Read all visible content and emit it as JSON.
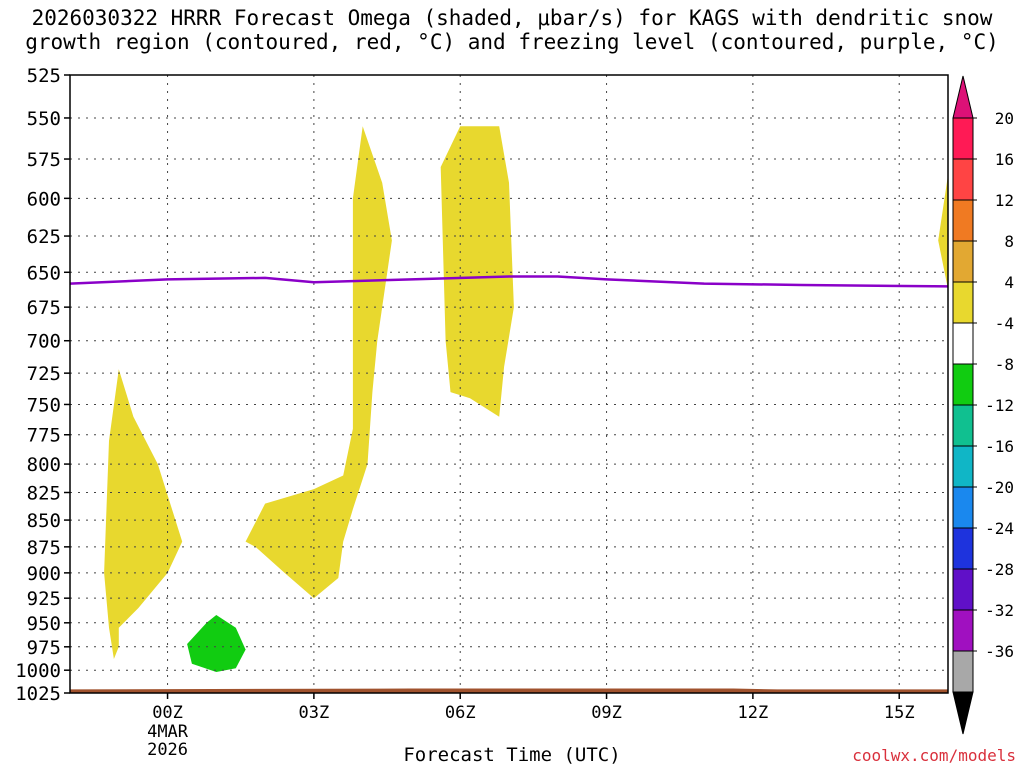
{
  "title_line1": "2026030322 HRRR Forecast Omega (shaded, μbar/s) for KAGS with dendritic snow",
  "title_line2": "growth region (contoured, red, °C) and freezing level (contoured, purple, °C)",
  "footer": {
    "xlabel": "Forecast Time (UTC)",
    "credit": "coolwx.com/models"
  },
  "chart_data": {
    "type": "contour",
    "title": "2026030322 HRRR Forecast Omega (shaded, μbar/s) for KAGS with dendritic snow growth region (contoured, red, °C) and freezing level (contoured, purple, °C)",
    "xlabel": "Forecast Time (UTC)",
    "ylabel": "",
    "x_unit": "hours since 2026-03-03 22Z",
    "xlim": [
      0,
      18
    ],
    "y_scale": "log-pressure",
    "ylim": [
      1025,
      525
    ],
    "x_ticks": [
      {
        "x": 2,
        "label": "00Z",
        "sub": [
          "4MAR",
          "2026"
        ]
      },
      {
        "x": 5,
        "label": "03Z"
      },
      {
        "x": 8,
        "label": "06Z"
      },
      {
        "x": 11,
        "label": "09Z"
      },
      {
        "x": 14,
        "label": "12Z"
      },
      {
        "x": 17,
        "label": "15Z"
      }
    ],
    "y_ticks": [
      525,
      550,
      575,
      600,
      625,
      650,
      675,
      700,
      725,
      750,
      775,
      800,
      825,
      850,
      875,
      900,
      925,
      950,
      975,
      1000,
      1025
    ],
    "grid": true,
    "colorbar": {
      "levels": [
        20,
        16,
        12,
        8,
        4,
        -4,
        -8,
        -12,
        -16,
        -20,
        -24,
        -28,
        -32,
        -36
      ],
      "colors": [
        "#ff1a55",
        "#ff4444",
        "#f07a22",
        "#e2a832",
        "#e8d82e",
        "#ffffff",
        "#11cc11",
        "#10c090",
        "#10b6c6",
        "#1a88ee",
        "#1e33dd",
        "#6010c8",
        "#a010c0",
        "#a8a8a8"
      ],
      "top_color": "#dd1177",
      "bottom_color": "#000000"
    },
    "freezing_level": {
      "color": "#8a00c8",
      "points": [
        [
          0.0,
          658
        ],
        [
          2.0,
          655
        ],
        [
          4.0,
          654
        ],
        [
          5.0,
          657
        ],
        [
          7.0,
          655
        ],
        [
          9.0,
          653
        ],
        [
          10.0,
          653
        ],
        [
          11.0,
          655
        ],
        [
          13.0,
          658
        ],
        [
          15.0,
          659
        ],
        [
          18.0,
          660
        ]
      ]
    },
    "omega_regions": [
      {
        "value_range": [
          4,
          8
        ],
        "color": "#e8d82e",
        "points": [
          [
            0.8,
            780
          ],
          [
            1.0,
            722
          ],
          [
            1.3,
            760
          ],
          [
            1.8,
            800
          ],
          [
            2.3,
            870
          ],
          [
            2.0,
            900
          ],
          [
            1.4,
            935
          ],
          [
            1.0,
            955
          ],
          [
            1.0,
            975
          ],
          [
            0.9,
            988
          ],
          [
            0.8,
            955
          ],
          [
            0.7,
            900
          ]
        ]
      },
      {
        "value_range": [
          4,
          8
        ],
        "color": "#e8d82e",
        "points": [
          [
            3.6,
            870
          ],
          [
            4.0,
            835
          ],
          [
            5.0,
            822
          ],
          [
            5.6,
            810
          ],
          [
            5.8,
            770
          ],
          [
            5.8,
            600
          ],
          [
            6.0,
            555
          ],
          [
            6.4,
            590
          ],
          [
            6.6,
            628
          ],
          [
            6.3,
            700
          ],
          [
            6.2,
            740
          ],
          [
            6.1,
            800
          ],
          [
            5.8,
            840
          ],
          [
            5.6,
            870
          ],
          [
            5.5,
            905
          ],
          [
            5.0,
            925
          ],
          [
            4.4,
            900
          ],
          [
            3.8,
            875
          ]
        ]
      },
      {
        "value_range": [
          4,
          8
        ],
        "color": "#e8d82e",
        "points": [
          [
            7.6,
            580
          ],
          [
            8.0,
            555
          ],
          [
            8.8,
            555
          ],
          [
            9.0,
            590
          ],
          [
            9.1,
            675
          ],
          [
            8.9,
            720
          ],
          [
            8.8,
            760
          ],
          [
            8.2,
            745
          ],
          [
            7.8,
            740
          ],
          [
            7.7,
            700
          ]
        ]
      },
      {
        "value_range": [
          4,
          8
        ],
        "color": "#e8d82e",
        "points": [
          [
            17.8,
            628
          ],
          [
            18.0,
            585
          ],
          [
            18.0,
            662
          ]
        ]
      },
      {
        "value_range": [
          -8,
          -4
        ],
        "color": "#11cc11",
        "points": [
          [
            2.4,
            972
          ],
          [
            2.8,
            950
          ],
          [
            3.0,
            942
          ],
          [
            3.4,
            955
          ],
          [
            3.6,
            978
          ],
          [
            3.4,
            998
          ],
          [
            3.0,
            1002
          ],
          [
            2.5,
            993
          ]
        ]
      }
    ],
    "terrain": {
      "color": "#a0522d",
      "top_pressure": [
        [
          0.0,
          1021
        ],
        [
          7.0,
          1020
        ],
        [
          13.6,
          1020
        ],
        [
          14.5,
          1021
        ],
        [
          18.0,
          1021
        ]
      ]
    }
  }
}
